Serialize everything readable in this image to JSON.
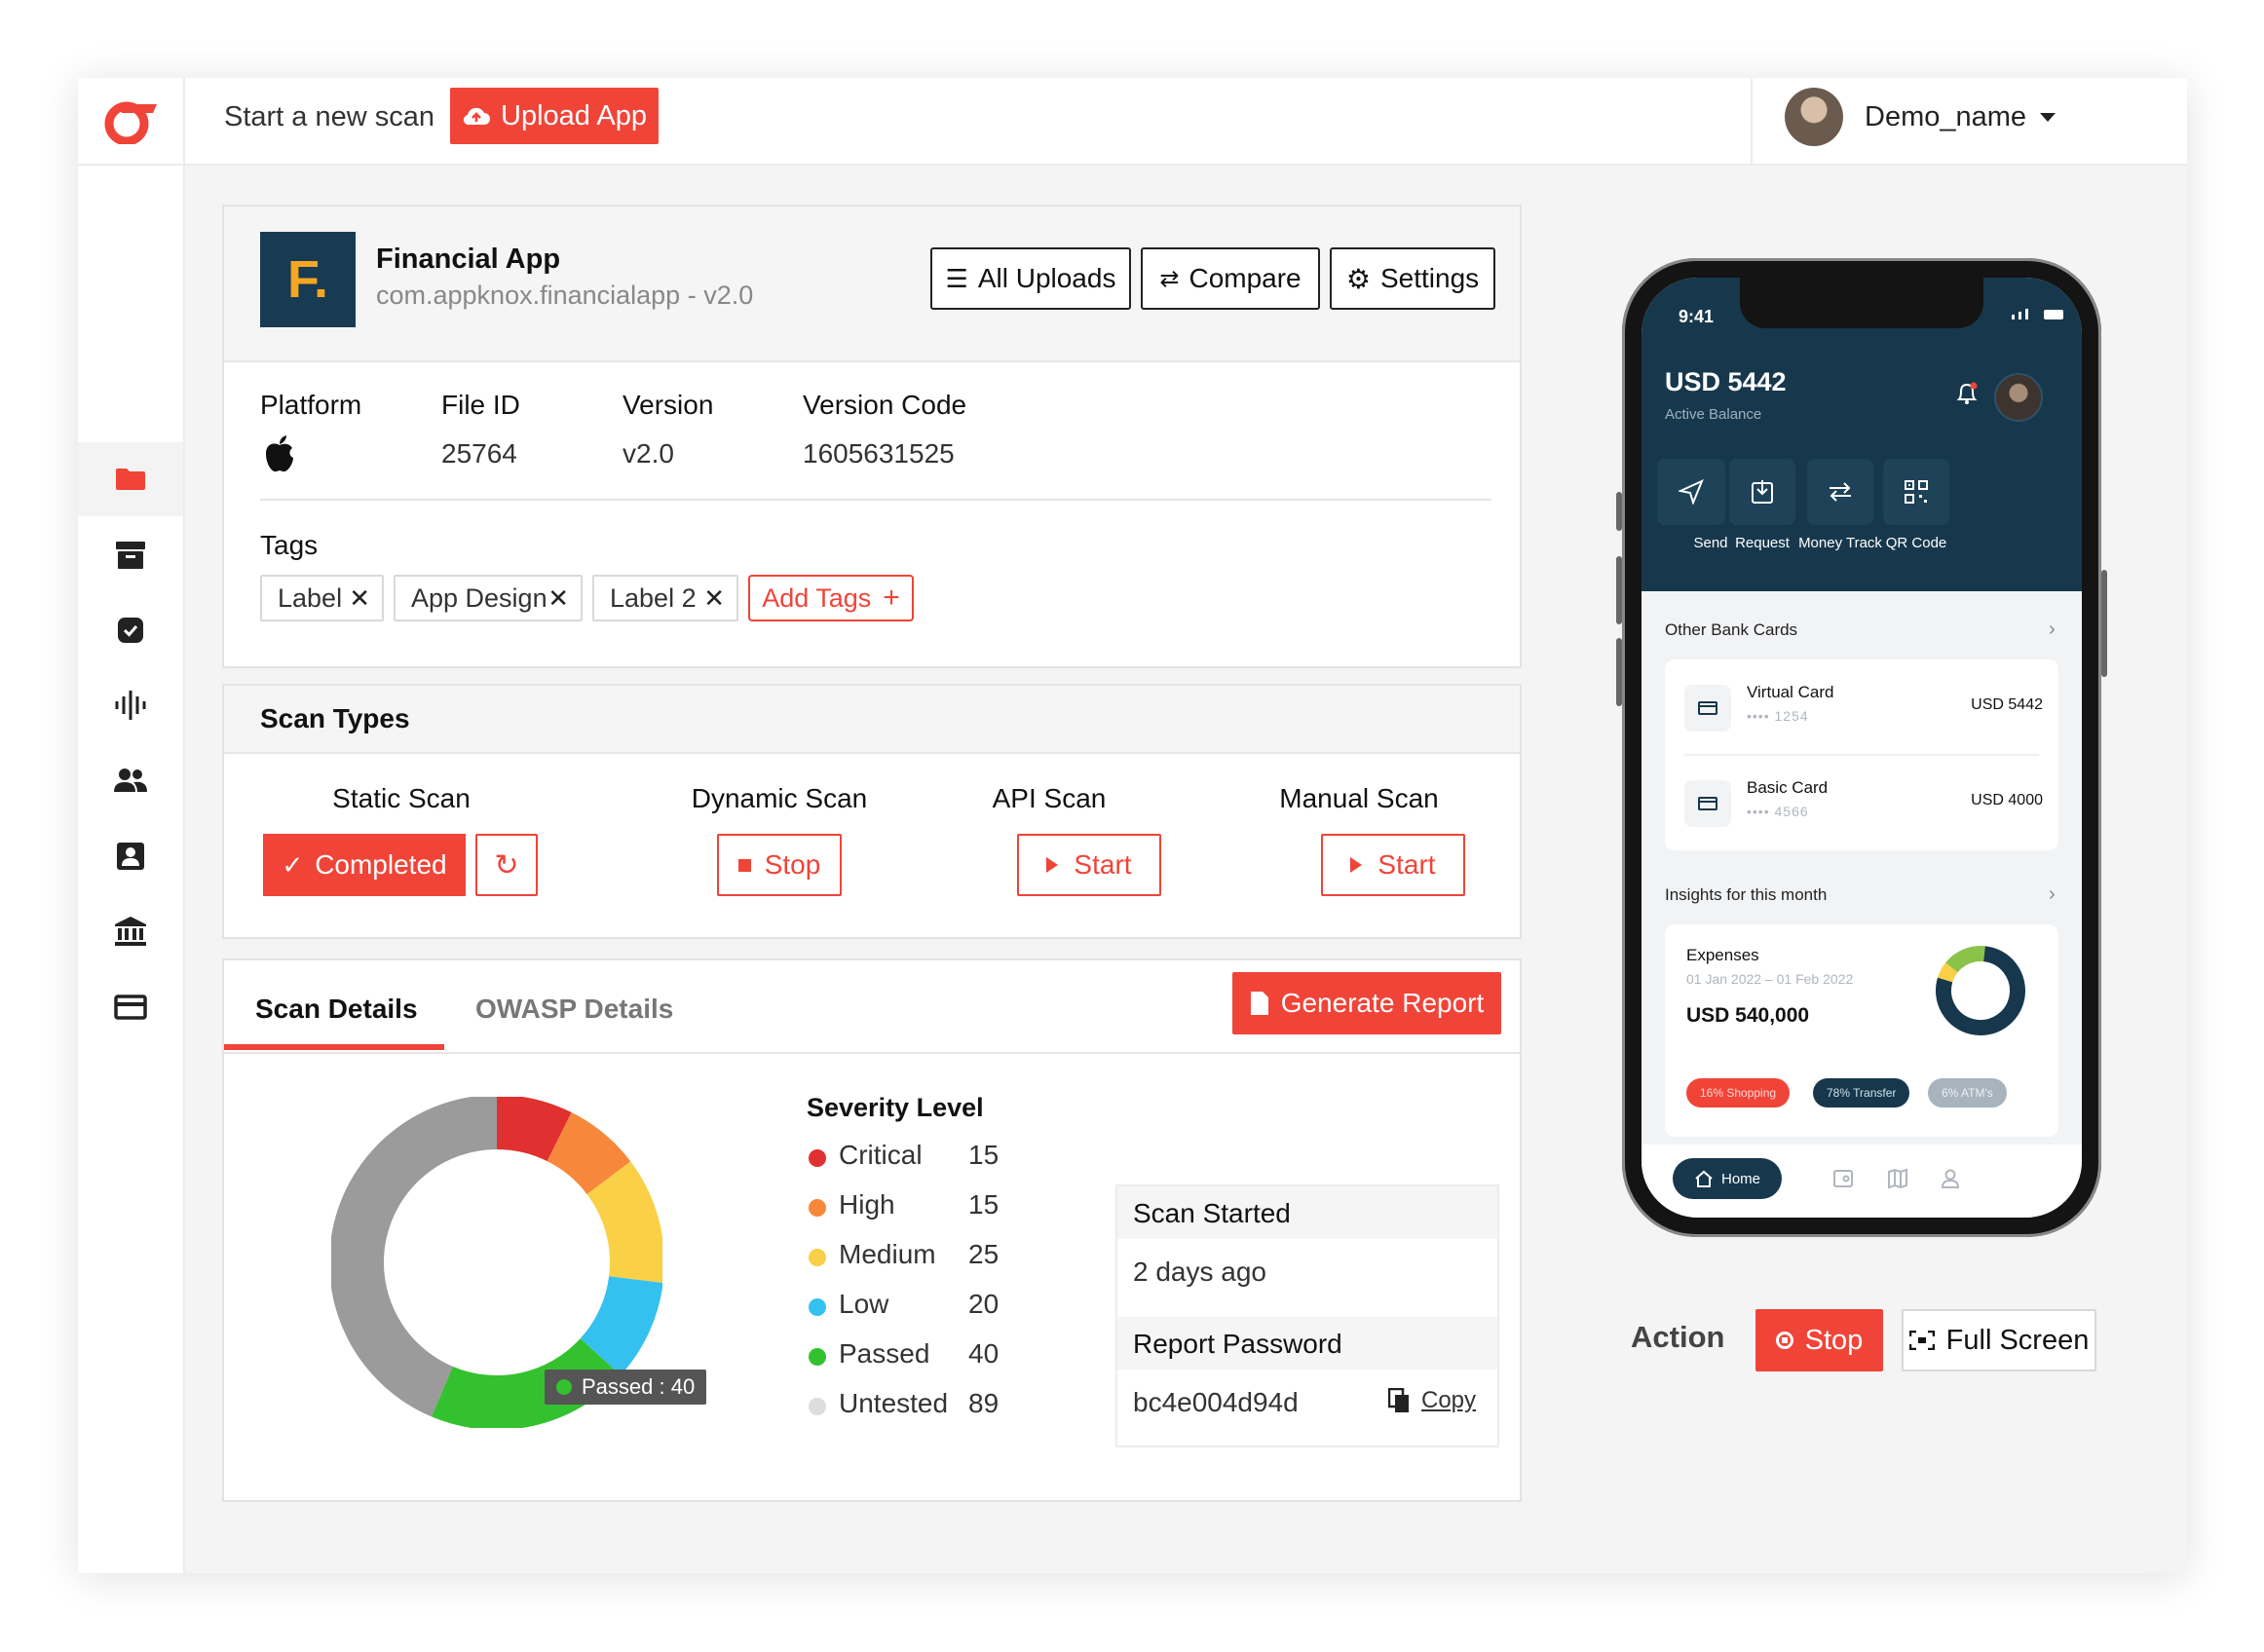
{
  "header": {
    "start_scan_label": "Start a new scan",
    "upload_label": "Upload App",
    "user_name": "Demo_name"
  },
  "app": {
    "logo_letter": "F.",
    "name": "Financial App",
    "package": "com.appknox.financialapp - v2.0",
    "all_uploads_label": "All Uploads",
    "compare_label": "Compare",
    "settings_label": "Settings"
  },
  "info": {
    "platform_label": "Platform",
    "file_id_label": "File ID",
    "file_id_value": "25764",
    "version_label": "Version",
    "version_value": "v2.0",
    "version_code_label": "Version Code",
    "version_code_value": "1605631525",
    "tags_label": "Tags",
    "tags": [
      "Label",
      "App Design",
      "Label 2"
    ],
    "add_tags_label": "Add Tags"
  },
  "scan_types": {
    "title": "Scan Types",
    "static": {
      "name": "Static Scan",
      "status": "Completed"
    },
    "dynamic": {
      "name": "Dynamic Scan",
      "action": "Stop"
    },
    "api": {
      "name": "API Scan",
      "action": "Start"
    },
    "manual": {
      "name": "Manual Scan",
      "action": "Start"
    }
  },
  "details": {
    "tab_scan": "Scan Details",
    "tab_owasp": "OWASP Details",
    "generate_label": "Generate Report",
    "tooltip": "Passed : 40",
    "severity_title": "Severity Level",
    "severity": [
      {
        "label": "Critical",
        "count": "15",
        "color": "#e0302f"
      },
      {
        "label": "High",
        "count": "15",
        "color": "#f7883b"
      },
      {
        "label": "Medium",
        "count": "25",
        "color": "#f9d046"
      },
      {
        "label": "Low",
        "count": "20",
        "color": "#35c1ef"
      },
      {
        "label": "Passed",
        "count": "40",
        "color": "#34c12f"
      },
      {
        "label": "Untested",
        "count": "89",
        "color": "#dddddd"
      }
    ],
    "donut_untested_color": "#9b9b9b",
    "scan_started_label": "Scan Started",
    "scan_started_value": "2 days ago",
    "password_label": "Report Password",
    "password_value": "bc4e004d94d",
    "copy_label": "Copy"
  },
  "phone": {
    "time": "9:41",
    "balance": "USD 5442",
    "balance_label": "Active Balance",
    "actions": [
      "Send",
      "Request",
      "Money Track",
      "QR Code"
    ],
    "other_cards_label": "Other Bank Cards",
    "cards": [
      {
        "name": "Virtual Card",
        "number": "•••• 1254",
        "amount": "USD 5442"
      },
      {
        "name": "Basic Card",
        "number": "•••• 4566",
        "amount": "USD 4000"
      }
    ],
    "insights_label": "Insights for this month",
    "expenses_label": "Expenses",
    "expenses_range": "01 Jan 2022 – 01 Feb 2022",
    "expenses_value": "USD 540,000",
    "chips": [
      "16% Shopping",
      "78% Transfer",
      "6% ATM's"
    ],
    "nav_home": "Home"
  },
  "action": {
    "label": "Action",
    "stop_label": "Stop",
    "fullscreen_label": "Full Screen"
  }
}
